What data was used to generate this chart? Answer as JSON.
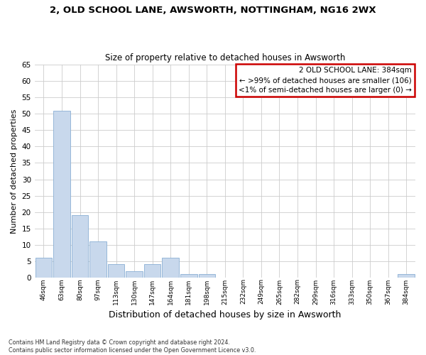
{
  "title": "2, OLD SCHOOL LANE, AWSWORTH, NOTTINGHAM, NG16 2WX",
  "subtitle": "Size of property relative to detached houses in Awsworth",
  "xlabel": "Distribution of detached houses by size in Awsworth",
  "ylabel": "Number of detached properties",
  "categories": [
    "46sqm",
    "63sqm",
    "80sqm",
    "97sqm",
    "113sqm",
    "130sqm",
    "147sqm",
    "164sqm",
    "181sqm",
    "198sqm",
    "215sqm",
    "232sqm",
    "249sqm",
    "265sqm",
    "282sqm",
    "299sqm",
    "316sqm",
    "333sqm",
    "350sqm",
    "367sqm",
    "384sqm"
  ],
  "values": [
    6,
    51,
    19,
    11,
    4,
    2,
    4,
    6,
    1,
    1,
    0,
    0,
    0,
    0,
    0,
    0,
    0,
    0,
    0,
    0,
    1
  ],
  "bar_color": "#c8d8ec",
  "bar_edge_color": "#8aafd4",
  "box_text_line1": "2 OLD SCHOOL LANE: 384sqm",
  "box_text_line2": "← >99% of detached houses are smaller (106)",
  "box_text_line3": "<1% of semi-detached houses are larger (0) →",
  "box_color": "#ffffff",
  "box_edge_color": "#cc0000",
  "ylim": [
    0,
    65
  ],
  "yticks": [
    0,
    5,
    10,
    15,
    20,
    25,
    30,
    35,
    40,
    45,
    50,
    55,
    60,
    65
  ],
  "footer_line1": "Contains HM Land Registry data © Crown copyright and database right 2024.",
  "footer_line2": "Contains public sector information licensed under the Open Government Licence v3.0.",
  "bg_color": "#ffffff",
  "grid_color": "#cccccc"
}
